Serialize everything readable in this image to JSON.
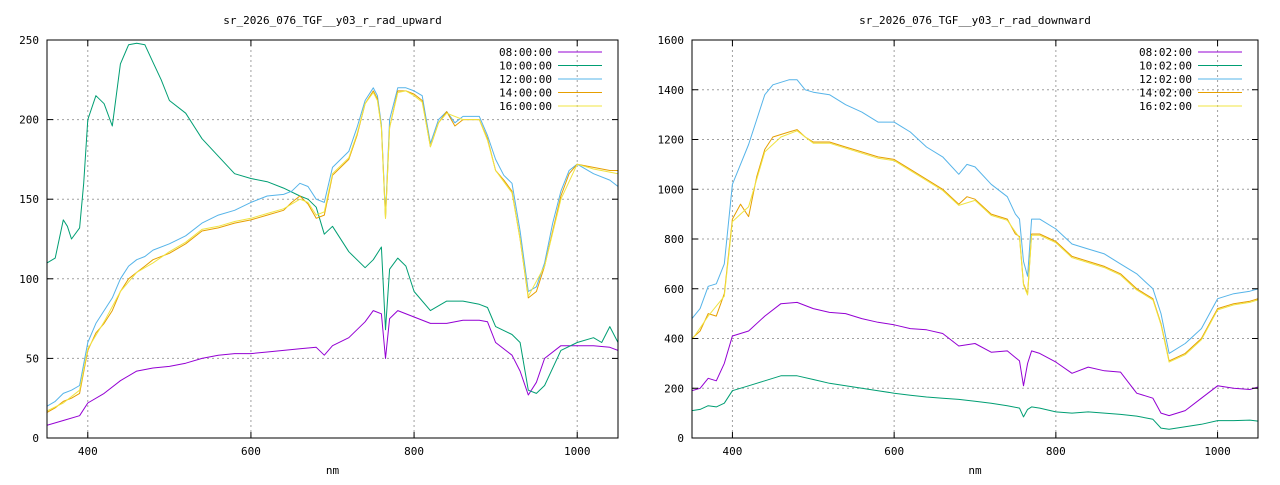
{
  "chart_data": [
    {
      "type": "line",
      "title": "sr_2026_076_TGF__y03_r_rad_upward",
      "xlabel": "nm",
      "ylabel": "",
      "xlim": [
        350,
        1050
      ],
      "ylim": [
        0,
        250
      ],
      "xticks": [
        400,
        600,
        800,
        1000
      ],
      "yticks": [
        0,
        50,
        100,
        150,
        200,
        250
      ],
      "grid": true,
      "legend_position": "top-right",
      "series": [
        {
          "name": "08:00:00",
          "color": "#9400d3",
          "x": [
            350,
            370,
            390,
            400,
            420,
            440,
            460,
            480,
            500,
            520,
            540,
            560,
            580,
            600,
            620,
            640,
            660,
            680,
            690,
            700,
            720,
            740,
            750,
            760,
            765,
            770,
            780,
            800,
            820,
            840,
            860,
            880,
            890,
            900,
            920,
            930,
            940,
            950,
            960,
            980,
            1000,
            1020,
            1040,
            1050
          ],
          "y": [
            8,
            11,
            14,
            22,
            28,
            36,
            42,
            44,
            45,
            47,
            50,
            52,
            53,
            53,
            54,
            55,
            56,
            57,
            52,
            58,
            63,
            73,
            80,
            78,
            50,
            75,
            80,
            76,
            72,
            72,
            74,
            74,
            73,
            60,
            52,
            42,
            27,
            35,
            50,
            58,
            58,
            58,
            57,
            55
          ]
        },
        {
          "name": "10:00:00",
          "color": "#009e73",
          "x": [
            350,
            360,
            370,
            375,
            380,
            390,
            395,
            400,
            410,
            420,
            430,
            440,
            450,
            460,
            470,
            480,
            490,
            500,
            520,
            540,
            560,
            580,
            600,
            620,
            640,
            660,
            670,
            680,
            690,
            700,
            720,
            740,
            750,
            760,
            765,
            770,
            780,
            790,
            800,
            820,
            840,
            860,
            880,
            890,
            900,
            920,
            930,
            940,
            950,
            960,
            980,
            1000,
            1020,
            1030,
            1040,
            1050
          ],
          "y": [
            110,
            113,
            137,
            133,
            125,
            132,
            160,
            200,
            215,
            210,
            196,
            235,
            247,
            248,
            247,
            236,
            225,
            212,
            204,
            188,
            177,
            166,
            163,
            161,
            157,
            152,
            150,
            145,
            128,
            133,
            117,
            107,
            112,
            120,
            68,
            106,
            113,
            108,
            92,
            80,
            86,
            86,
            84,
            82,
            70,
            65,
            60,
            30,
            28,
            33,
            55,
            60,
            63,
            60,
            70,
            60
          ]
        },
        {
          "name": "12:00:00",
          "color": "#56b4e9",
          "x": [
            350,
            360,
            370,
            380,
            390,
            400,
            410,
            420,
            430,
            440,
            450,
            460,
            470,
            480,
            500,
            520,
            540,
            560,
            580,
            600,
            620,
            640,
            650,
            660,
            670,
            680,
            690,
            700,
            720,
            730,
            740,
            750,
            755,
            760,
            765,
            770,
            780,
            790,
            800,
            810,
            820,
            830,
            840,
            850,
            860,
            880,
            890,
            900,
            910,
            920,
            930,
            940,
            950,
            960,
            970,
            980,
            990,
            1000,
            1020,
            1040,
            1050
          ],
          "y": [
            20,
            23,
            28,
            30,
            33,
            60,
            72,
            80,
            88,
            100,
            108,
            112,
            114,
            118,
            122,
            127,
            135,
            140,
            143,
            148,
            152,
            153,
            155,
            160,
            158,
            150,
            148,
            170,
            180,
            195,
            212,
            220,
            215,
            197,
            140,
            200,
            220,
            220,
            218,
            215,
            185,
            200,
            205,
            198,
            202,
            202,
            190,
            175,
            165,
            160,
            130,
            92,
            95,
            110,
            135,
            155,
            168,
            172,
            166,
            162,
            158
          ]
        },
        {
          "name": "14:00:00",
          "color": "#e69f00",
          "x": [
            350,
            360,
            370,
            380,
            390,
            400,
            410,
            420,
            430,
            440,
            450,
            460,
            470,
            480,
            500,
            520,
            540,
            560,
            580,
            600,
            620,
            640,
            650,
            660,
            670,
            680,
            690,
            700,
            720,
            730,
            740,
            750,
            755,
            760,
            765,
            770,
            780,
            790,
            800,
            810,
            820,
            830,
            840,
            850,
            860,
            880,
            890,
            900,
            910,
            920,
            930,
            940,
            950,
            960,
            970,
            980,
            990,
            1000,
            1020,
            1040,
            1050
          ],
          "y": [
            16,
            19,
            23,
            25,
            28,
            55,
            66,
            72,
            80,
            92,
            100,
            104,
            108,
            112,
            116,
            122,
            130,
            132,
            135,
            137,
            140,
            143,
            148,
            152,
            147,
            138,
            140,
            165,
            175,
            190,
            210,
            218,
            213,
            195,
            138,
            195,
            218,
            218,
            216,
            212,
            183,
            198,
            205,
            196,
            200,
            200,
            188,
            168,
            162,
            155,
            125,
            88,
            92,
            108,
            130,
            152,
            166,
            172,
            170,
            168,
            168
          ]
        },
        {
          "name": "16:00:00",
          "color": "#f0e442",
          "x": [
            350,
            370,
            390,
            400,
            420,
            440,
            460,
            480,
            500,
            520,
            540,
            560,
            580,
            600,
            620,
            640,
            660,
            670,
            680,
            690,
            700,
            720,
            730,
            740,
            750,
            755,
            760,
            765,
            770,
            780,
            790,
            800,
            810,
            820,
            830,
            840,
            860,
            880,
            890,
            900,
            910,
            920,
            930,
            940,
            960,
            980,
            1000,
            1020,
            1040,
            1050
          ],
          "y": [
            17,
            22,
            30,
            56,
            73,
            92,
            104,
            110,
            117,
            123,
            131,
            133,
            136,
            138,
            141,
            144,
            150,
            148,
            140,
            142,
            166,
            176,
            191,
            210,
            217,
            212,
            195,
            138,
            195,
            217,
            218,
            215,
            211,
            183,
            198,
            204,
            200,
            200,
            187,
            168,
            161,
            154,
            125,
            89,
            108,
            150,
            172,
            169,
            167,
            166
          ]
        }
      ]
    },
    {
      "type": "line",
      "title": "sr_2026_076_TGF__y03_r_rad_downward",
      "xlabel": "nm",
      "ylabel": "",
      "xlim": [
        350,
        1050
      ],
      "ylim": [
        0,
        1600
      ],
      "xticks": [
        400,
        600,
        800,
        1000
      ],
      "yticks": [
        0,
        200,
        400,
        600,
        800,
        1000,
        1200,
        1400,
        1600
      ],
      "grid": true,
      "legend_position": "top-right",
      "series": [
        {
          "name": "08:02:00",
          "color": "#9400d3",
          "x": [
            350,
            360,
            370,
            380,
            390,
            400,
            420,
            440,
            460,
            480,
            500,
            520,
            540,
            560,
            580,
            600,
            620,
            640,
            660,
            680,
            700,
            720,
            740,
            755,
            760,
            765,
            770,
            780,
            800,
            820,
            840,
            860,
            880,
            900,
            920,
            930,
            940,
            960,
            980,
            1000,
            1020,
            1040,
            1050
          ],
          "y": [
            190,
            200,
            240,
            230,
            300,
            410,
            430,
            490,
            540,
            545,
            520,
            505,
            500,
            480,
            465,
            455,
            440,
            435,
            420,
            370,
            380,
            345,
            350,
            310,
            210,
            300,
            350,
            340,
            305,
            260,
            285,
            270,
            265,
            180,
            160,
            100,
            90,
            110,
            160,
            210,
            200,
            195,
            205
          ]
        },
        {
          "name": "10:02:00",
          "color": "#009e73",
          "x": [
            350,
            360,
            370,
            380,
            390,
            400,
            420,
            440,
            460,
            480,
            500,
            520,
            540,
            560,
            580,
            600,
            620,
            640,
            660,
            680,
            700,
            720,
            740,
            755,
            760,
            765,
            770,
            780,
            800,
            820,
            840,
            860,
            880,
            900,
            920,
            930,
            940,
            960,
            980,
            1000,
            1020,
            1040,
            1050
          ],
          "y": [
            110,
            115,
            130,
            125,
            140,
            190,
            210,
            230,
            250,
            250,
            235,
            220,
            210,
            200,
            190,
            180,
            172,
            165,
            160,
            155,
            148,
            140,
            130,
            120,
            85,
            115,
            125,
            120,
            105,
            100,
            105,
            100,
            95,
            88,
            75,
            40,
            35,
            45,
            55,
            70,
            70,
            72,
            68
          ]
        },
        {
          "name": "12:02:00",
          "color": "#56b4e9",
          "x": [
            350,
            360,
            370,
            380,
            390,
            400,
            410,
            420,
            430,
            440,
            450,
            460,
            470,
            480,
            490,
            500,
            520,
            540,
            560,
            580,
            600,
            620,
            640,
            660,
            680,
            690,
            700,
            720,
            740,
            750,
            755,
            760,
            765,
            770,
            780,
            800,
            820,
            840,
            860,
            880,
            900,
            920,
            930,
            940,
            960,
            980,
            1000,
            1020,
            1040,
            1050
          ],
          "y": [
            480,
            520,
            610,
            620,
            700,
            1020,
            1100,
            1180,
            1280,
            1380,
            1420,
            1430,
            1440,
            1440,
            1400,
            1390,
            1380,
            1340,
            1310,
            1270,
            1270,
            1230,
            1170,
            1130,
            1060,
            1100,
            1090,
            1020,
            970,
            900,
            880,
            710,
            650,
            880,
            880,
            840,
            780,
            760,
            740,
            700,
            660,
            600,
            500,
            340,
            380,
            440,
            560,
            580,
            590,
            600
          ]
        },
        {
          "name": "14:02:00",
          "color": "#e69f00",
          "x": [
            350,
            360,
            370,
            380,
            390,
            400,
            410,
            420,
            430,
            440,
            450,
            460,
            470,
            480,
            490,
            500,
            520,
            540,
            560,
            580,
            600,
            620,
            640,
            660,
            680,
            690,
            700,
            720,
            740,
            750,
            755,
            760,
            765,
            770,
            780,
            800,
            820,
            840,
            860,
            880,
            900,
            920,
            930,
            940,
            960,
            980,
            1000,
            1020,
            1040,
            1050
          ],
          "y": [
            400,
            430,
            500,
            490,
            580,
            880,
            940,
            890,
            1050,
            1160,
            1210,
            1220,
            1230,
            1240,
            1210,
            1190,
            1190,
            1170,
            1150,
            1130,
            1120,
            1080,
            1040,
            1000,
            940,
            970,
            960,
            900,
            880,
            820,
            810,
            620,
            580,
            820,
            820,
            790,
            730,
            710,
            690,
            660,
            600,
            560,
            460,
            310,
            340,
            400,
            520,
            540,
            550,
            560
          ]
        },
        {
          "name": "16:02:00",
          "color": "#f0e442",
          "x": [
            350,
            370,
            390,
            400,
            420,
            440,
            460,
            480,
            500,
            520,
            540,
            560,
            580,
            600,
            620,
            640,
            660,
            680,
            700,
            720,
            740,
            755,
            760,
            765,
            770,
            780,
            800,
            820,
            840,
            860,
            880,
            900,
            920,
            930,
            940,
            960,
            980,
            1000,
            1020,
            1040,
            1050
          ],
          "y": [
            395,
            490,
            570,
            870,
            930,
            1150,
            1210,
            1235,
            1185,
            1185,
            1165,
            1145,
            1125,
            1115,
            1075,
            1035,
            995,
            935,
            955,
            895,
            875,
            805,
            615,
            575,
            815,
            815,
            785,
            725,
            705,
            685,
            655,
            595,
            555,
            455,
            305,
            335,
            395,
            515,
            535,
            545,
            555
          ]
        }
      ]
    }
  ]
}
